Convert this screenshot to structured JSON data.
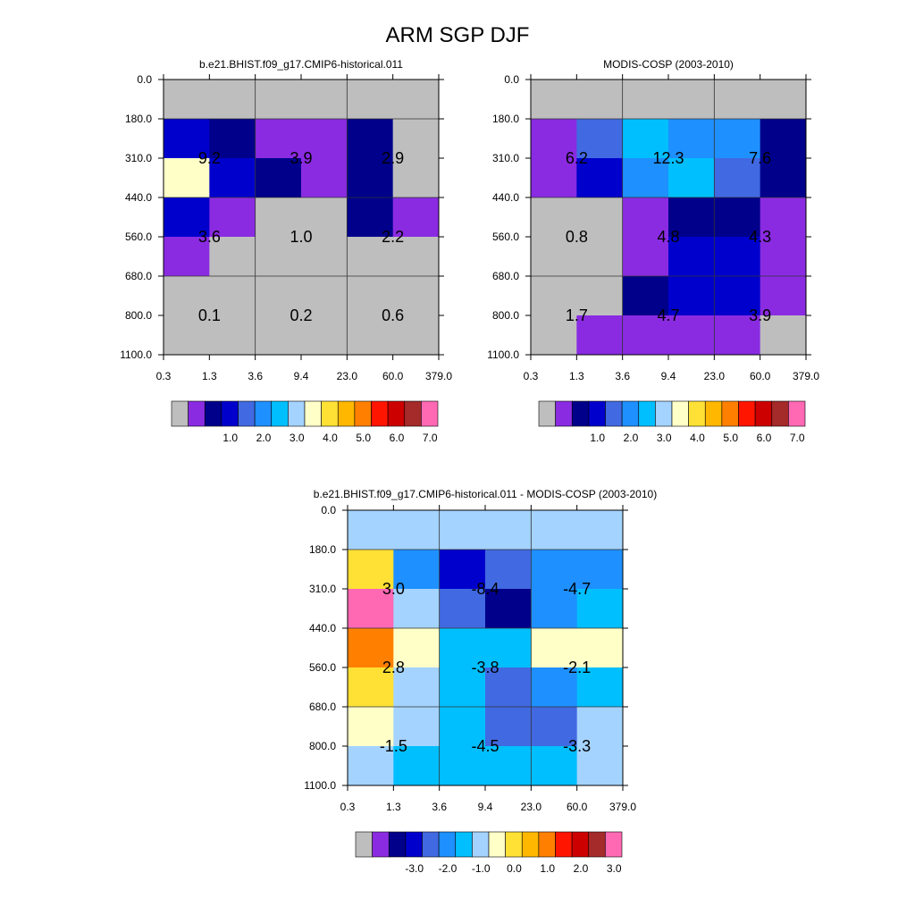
{
  "title": "ARM SGP DJF",
  "colors": {
    "abs": [
      "#BEBEBE",
      "#8A2BE2",
      "#00008B",
      "#0000CD",
      "#4169E1",
      "#1E90FF",
      "#00BFFF",
      "#A4D3FF",
      "#FFFFC8",
      "#FFE135",
      "#FFB700",
      "#FF8000",
      "#FF1500",
      "#CD0000",
      "#A52A2A",
      "#FF69B4"
    ],
    "diff": [
      "#BEBEBE",
      "#8A2BE2",
      "#00008B",
      "#0000CD",
      "#4169E1",
      "#1E90FF",
      "#00BFFF",
      "#A4D3FF",
      "#FFFFC8",
      "#FFE135",
      "#FFB700",
      "#FF8000",
      "#FF1500",
      "#CD0000",
      "#A52A2A",
      "#FF69B4"
    ]
  },
  "chart_data": [
    {
      "type": "heatmap",
      "title": "b.e21.BHIST.f09_g17.CMIP6-historical.011",
      "x_ticks": [
        "0.3",
        "1.3",
        "3.6",
        "9.4",
        "23.0",
        "60.0",
        "379.0"
      ],
      "y_ticks": [
        "0.0",
        "180.0",
        "310.0",
        "440.0",
        "560.0",
        "680.0",
        "800.0",
        "1100.0"
      ],
      "cells": [
        [
          0,
          0,
          0,
          0,
          0,
          0
        ],
        [
          3,
          2,
          1,
          1,
          2,
          0
        ],
        [
          8,
          3,
          2,
          1,
          2,
          0
        ],
        [
          3,
          1,
          0,
          0,
          2,
          1
        ],
        [
          1,
          0,
          0,
          0,
          0,
          0
        ],
        [
          0,
          0,
          0,
          0,
          0,
          0
        ],
        [
          0,
          0,
          0,
          0,
          0,
          0
        ]
      ],
      "labels": [
        {
          "col": 0,
          "row": 0,
          "text": "9.2"
        },
        {
          "col": 1,
          "row": 0,
          "text": "3.9"
        },
        {
          "col": 2,
          "row": 0,
          "text": "2.9"
        },
        {
          "col": 0,
          "row": 1,
          "text": "3.6"
        },
        {
          "col": 1,
          "row": 1,
          "text": "1.0"
        },
        {
          "col": 2,
          "row": 1,
          "text": "2.2"
        },
        {
          "col": 0,
          "row": 2,
          "text": "0.1"
        },
        {
          "col": 1,
          "row": 2,
          "text": "0.2"
        },
        {
          "col": 2,
          "row": 2,
          "text": "0.6"
        }
      ],
      "colorbar": {
        "palette": "abs",
        "labels": [
          "1.0",
          "2.0",
          "3.0",
          "4.0",
          "5.0",
          "6.0",
          "7.0"
        ]
      }
    },
    {
      "type": "heatmap",
      "title": "MODIS-COSP (2003-2010)",
      "x_ticks": [
        "0.3",
        "1.3",
        "3.6",
        "9.4",
        "23.0",
        "60.0",
        "379.0"
      ],
      "y_ticks": [
        "0.0",
        "180.0",
        "310.0",
        "440.0",
        "560.0",
        "680.0",
        "800.0",
        "1100.0"
      ],
      "cells": [
        [
          0,
          0,
          0,
          0,
          0,
          0
        ],
        [
          1,
          4,
          6,
          5,
          5,
          2
        ],
        [
          1,
          3,
          5,
          6,
          4,
          2
        ],
        [
          0,
          0,
          1,
          2,
          2,
          1
        ],
        [
          0,
          0,
          1,
          3,
          3,
          1
        ],
        [
          0,
          0,
          2,
          3,
          3,
          1
        ],
        [
          0,
          1,
          1,
          1,
          1,
          0
        ]
      ],
      "labels": [
        {
          "col": 0,
          "row": 0,
          "text": "6.2"
        },
        {
          "col": 1,
          "row": 0,
          "text": "12.3"
        },
        {
          "col": 2,
          "row": 0,
          "text": "7.6"
        },
        {
          "col": 0,
          "row": 1,
          "text": "0.8"
        },
        {
          "col": 1,
          "row": 1,
          "text": "4.8"
        },
        {
          "col": 2,
          "row": 1,
          "text": "4.3"
        },
        {
          "col": 0,
          "row": 2,
          "text": "1.7"
        },
        {
          "col": 1,
          "row": 2,
          "text": "4.7"
        },
        {
          "col": 2,
          "row": 2,
          "text": "3.9"
        }
      ],
      "colorbar": {
        "palette": "abs",
        "labels": [
          "1.0",
          "2.0",
          "3.0",
          "4.0",
          "5.0",
          "6.0",
          "7.0"
        ]
      }
    },
    {
      "type": "heatmap",
      "title": "b.e21.BHIST.f09_g17.CMIP6-historical.011 - MODIS-COSP (2003-2010)",
      "x_ticks": [
        "0.3",
        "1.3",
        "3.6",
        "9.4",
        "23.0",
        "60.0",
        "379.0"
      ],
      "y_ticks": [
        "0.0",
        "180.0",
        "310.0",
        "440.0",
        "560.0",
        "680.0",
        "800.0",
        "1100.0"
      ],
      "cells": [
        [
          7,
          7,
          7,
          7,
          7,
          7
        ],
        [
          9,
          5,
          3,
          4,
          5,
          5
        ],
        [
          15,
          7,
          4,
          2,
          5,
          6
        ],
        [
          11,
          8,
          6,
          6,
          8,
          8
        ],
        [
          9,
          7,
          6,
          4,
          5,
          6
        ],
        [
          8,
          7,
          6,
          4,
          4,
          7
        ],
        [
          7,
          6,
          6,
          6,
          6,
          7
        ]
      ],
      "labels": [
        {
          "col": 0,
          "row": 0,
          "text": "3.0"
        },
        {
          "col": 1,
          "row": 0,
          "text": "-8.4"
        },
        {
          "col": 2,
          "row": 0,
          "text": "-4.7"
        },
        {
          "col": 0,
          "row": 1,
          "text": "2.8"
        },
        {
          "col": 1,
          "row": 1,
          "text": "-3.8"
        },
        {
          "col": 2,
          "row": 1,
          "text": "-2.1"
        },
        {
          "col": 0,
          "row": 2,
          "text": "-1.5"
        },
        {
          "col": 1,
          "row": 2,
          "text": "-4.5"
        },
        {
          "col": 2,
          "row": 2,
          "text": "-3.3"
        }
      ],
      "colorbar": {
        "palette": "diff",
        "labels": [
          "-3.0",
          "-2.0",
          "-1.0",
          "0.0",
          "1.0",
          "2.0",
          "3.0"
        ]
      }
    }
  ]
}
